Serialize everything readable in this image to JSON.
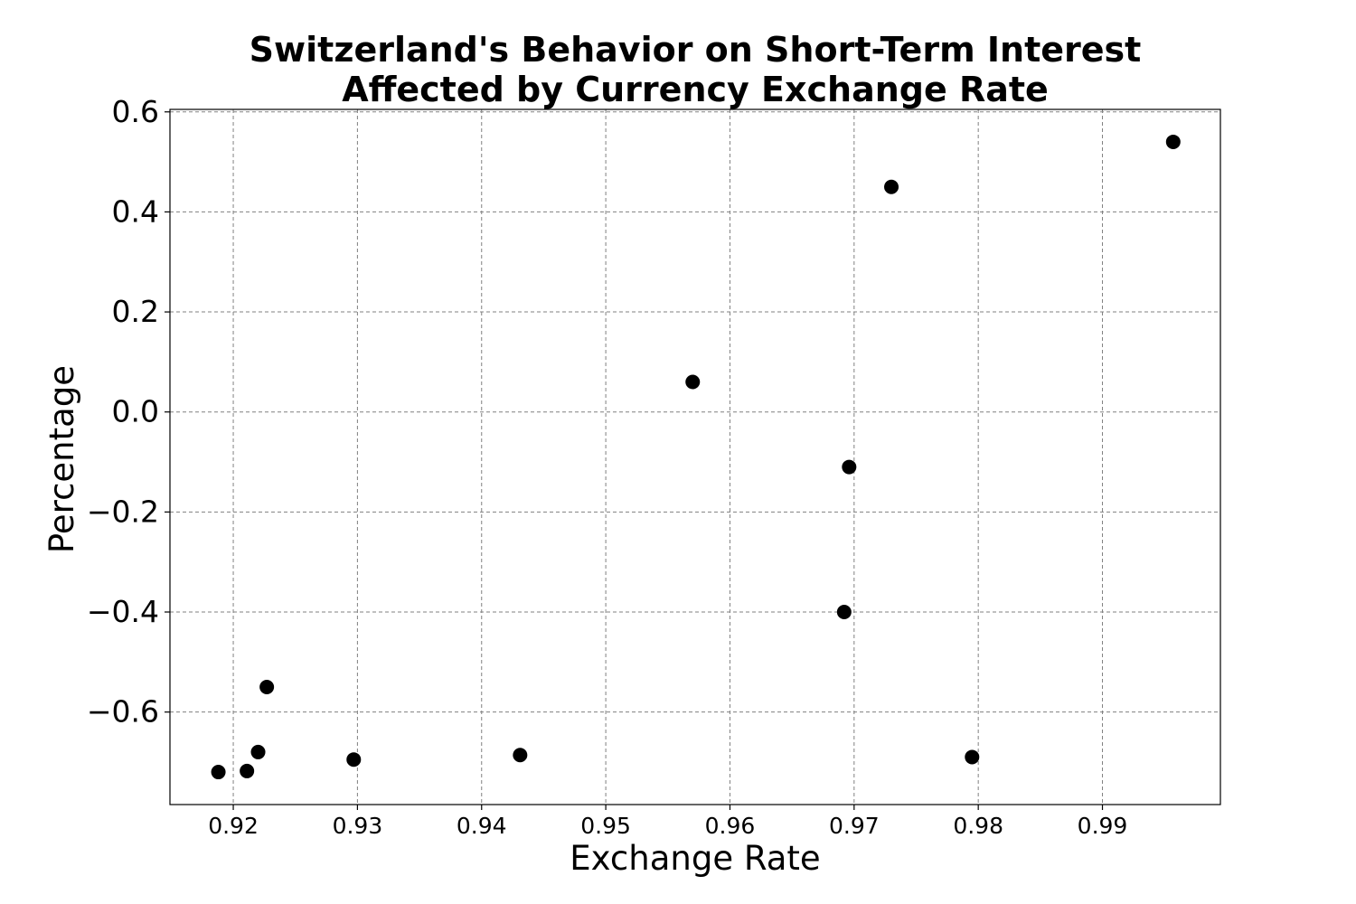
{
  "chart_data": {
    "type": "scatter",
    "title_lines": [
      "Switzerland's Behavior on Short-Term Interest",
      "Affected by Currency Exchange Rate"
    ],
    "xlabel": "Exchange Rate",
    "ylabel": "Percentage",
    "xlim": [
      0.9149,
      0.9995
    ],
    "ylim": [
      -0.785,
      0.605
    ],
    "x_ticks": [
      0.92,
      0.93,
      0.94,
      0.95,
      0.96,
      0.97,
      0.98,
      0.99
    ],
    "x_tick_labels": [
      "0.92",
      "0.93",
      "0.94",
      "0.95",
      "0.96",
      "0.97",
      "0.98",
      "0.99"
    ],
    "y_ticks": [
      0.6,
      0.4,
      0.2,
      0.0,
      -0.2,
      -0.4,
      -0.6
    ],
    "y_tick_labels": [
      "0.6",
      "0.4",
      "0.2",
      "0.0",
      "−0.2",
      "−0.4",
      "−0.6"
    ],
    "grid": true,
    "marker_color": "#000000",
    "points": [
      {
        "x": 0.9188,
        "y": -0.72
      },
      {
        "x": 0.9211,
        "y": -0.718
      },
      {
        "x": 0.922,
        "y": -0.68
      },
      {
        "x": 0.9227,
        "y": -0.55
      },
      {
        "x": 0.9297,
        "y": -0.695
      },
      {
        "x": 0.9431,
        "y": -0.686
      },
      {
        "x": 0.957,
        "y": 0.06
      },
      {
        "x": 0.9692,
        "y": -0.4
      },
      {
        "x": 0.9696,
        "y": -0.11
      },
      {
        "x": 0.973,
        "y": 0.45
      },
      {
        "x": 0.9795,
        "y": -0.69
      },
      {
        "x": 0.9957,
        "y": 0.54
      }
    ]
  }
}
